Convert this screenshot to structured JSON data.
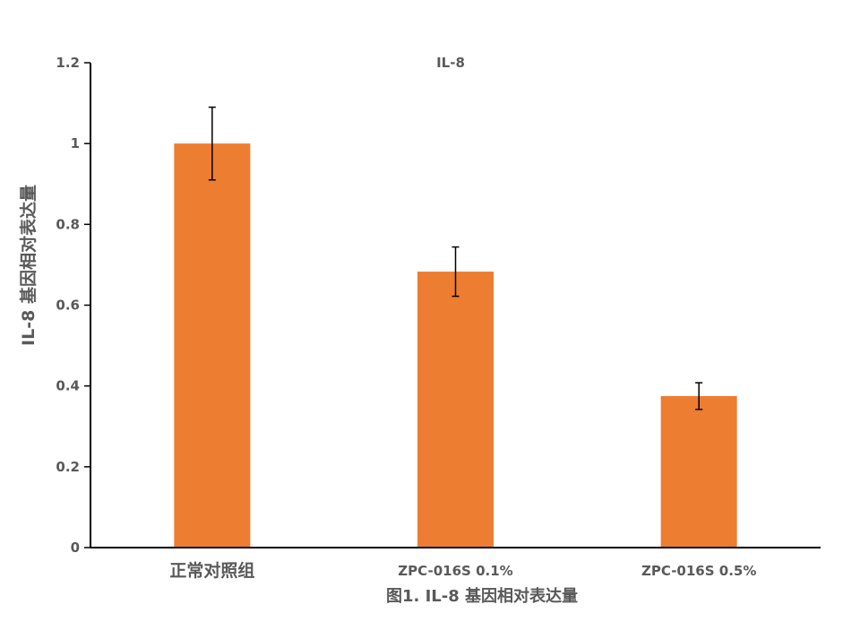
{
  "chart_data": {
    "type": "bar",
    "title": "IL-8",
    "ylabel": "IL-8 基因相对表达量",
    "xlabel": "",
    "caption": "图1. IL-8 基因相对表达量",
    "categories": [
      "正常对照组",
      "ZPC-016S 0.1%",
      "ZPC-016S 0.5%"
    ],
    "values": [
      1.0,
      0.683,
      0.375
    ],
    "error": [
      0.09,
      0.061,
      0.033
    ],
    "ylim": [
      0,
      1.2
    ],
    "yticks": [
      0,
      0.2,
      0.4,
      0.6,
      0.8,
      1,
      1.2
    ],
    "ytick_labels": [
      "0",
      "0.2",
      "0.4",
      "0.6",
      "0.8",
      "1",
      "1.2"
    ],
    "bar_color": "#ED7D31",
    "grid": false,
    "legend": "none"
  }
}
